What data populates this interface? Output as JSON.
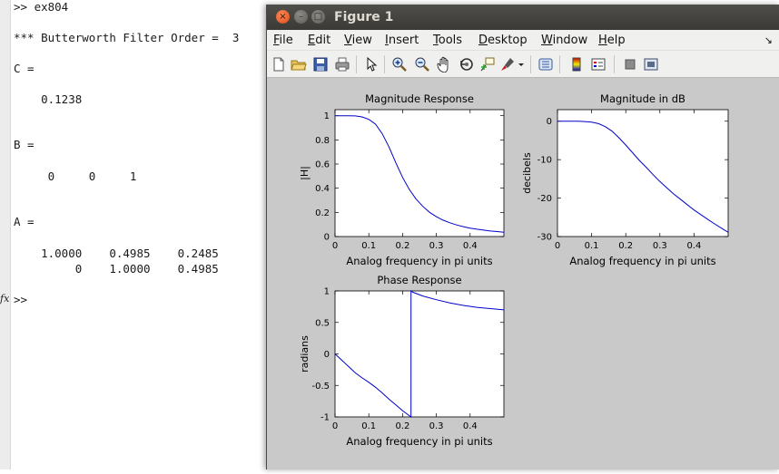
{
  "command_window": {
    "lines": [
      ">> ex804",
      "*** Butterworth Filter Order =  3",
      "C =",
      "    0.1238",
      "B =",
      "     0     0     1",
      "A =",
      "    1.0000    0.4985    0.2485",
      "         0    1.0000    0.4985",
      ">>"
    ],
    "fx_symbol": "fx"
  },
  "figure": {
    "title": "Figure 1",
    "menus": [
      "File",
      "Edit",
      "View",
      "Insert",
      "Tools",
      "Desktop",
      "Window",
      "Help"
    ],
    "menu_underline": [
      "F",
      "E",
      "V",
      "I",
      "T",
      "D",
      "W",
      "H"
    ],
    "dock_symbol": "↘",
    "toolbar_icons": [
      "new-figure-icon",
      "open-file-icon",
      "save-icon",
      "print-icon",
      "edit-plot-arrow-icon",
      "zoom-in-icon",
      "zoom-out-icon",
      "pan-hand-icon",
      "rotate-3d-icon",
      "data-cursor-icon",
      "brush-icon",
      "link-plot-icon",
      "insert-colorbar-icon",
      "insert-legend-icon",
      "hide-plot-tools-icon",
      "show-plot-tools-icon"
    ]
  },
  "colors": {
    "line": "#0000cc",
    "figure_bg": "#c9c9c9",
    "titlebar": "#3c3b37",
    "close": "#e95420"
  },
  "chart_data": [
    {
      "type": "line",
      "title": "Magnitude Response",
      "xlabel": "Analog frequency in pi units",
      "ylabel": "|H|",
      "xlim": [
        0,
        0.5
      ],
      "ylim": [
        0,
        1.05
      ],
      "xticks": [
        "0",
        "0.1",
        "0.2",
        "0.3",
        "0.4"
      ],
      "yticks": [
        "0",
        "0.2",
        "0.4",
        "0.6",
        "0.8",
        "1"
      ],
      "x": [
        0,
        0.02,
        0.04,
        0.06,
        0.08,
        0.1,
        0.12,
        0.14,
        0.16,
        0.18,
        0.2,
        0.22,
        0.24,
        0.26,
        0.28,
        0.3,
        0.32,
        0.34,
        0.36,
        0.38,
        0.4,
        0.42,
        0.44,
        0.46,
        0.48,
        0.5
      ],
      "y": [
        1.0,
        1.0,
        1.0,
        0.998,
        0.99,
        0.97,
        0.93,
        0.85,
        0.74,
        0.61,
        0.49,
        0.39,
        0.31,
        0.25,
        0.2,
        0.164,
        0.136,
        0.114,
        0.096,
        0.082,
        0.07,
        0.061,
        0.053,
        0.046,
        0.041,
        0.036
      ]
    },
    {
      "type": "line",
      "title": "Magnitude in dB",
      "xlabel": "Analog frequency in pi units",
      "ylabel": "decibels",
      "xlim": [
        0,
        0.5
      ],
      "ylim": [
        -30,
        3
      ],
      "xticks": [
        "0",
        "0.1",
        "0.2",
        "0.3",
        "0.4"
      ],
      "yticks": [
        "-30",
        "-20",
        "-10",
        "0"
      ],
      "x": [
        0,
        0.02,
        0.04,
        0.06,
        0.08,
        0.1,
        0.12,
        0.14,
        0.16,
        0.18,
        0.2,
        0.22,
        0.24,
        0.26,
        0.28,
        0.3,
        0.32,
        0.34,
        0.36,
        0.38,
        0.4,
        0.42,
        0.44,
        0.46,
        0.48,
        0.5
      ],
      "y": [
        0,
        0,
        0,
        -0.02,
        -0.09,
        -0.26,
        -0.63,
        -1.41,
        -2.6,
        -4.3,
        -6.2,
        -8.2,
        -10.2,
        -12.0,
        -13.9,
        -15.7,
        -17.3,
        -18.9,
        -20.3,
        -21.7,
        -23.1,
        -24.3,
        -25.5,
        -26.7,
        -27.8,
        -28.9
      ]
    },
    {
      "type": "line",
      "title": "Phase Response",
      "xlabel": "Analog frequency in pi units",
      "ylabel": "radians",
      "xlim": [
        0,
        0.5
      ],
      "ylim": [
        -1,
        1
      ],
      "xticks": [
        "0",
        "0.1",
        "0.2",
        "0.3",
        "0.4"
      ],
      "yticks": [
        "-1",
        "-0.5",
        "0",
        "0.5",
        "1"
      ],
      "x": [
        0,
        0.02,
        0.04,
        0.06,
        0.08,
        0.1,
        0.12,
        0.14,
        0.16,
        0.18,
        0.2,
        0.22,
        0.225,
        0.2251,
        0.23,
        0.26,
        0.3,
        0.34,
        0.38,
        0.42,
        0.46,
        0.5
      ],
      "y": [
        0,
        -0.1,
        -0.2,
        -0.3,
        -0.38,
        -0.45,
        -0.53,
        -0.62,
        -0.72,
        -0.81,
        -0.9,
        -0.98,
        -1.0,
        1.0,
        0.98,
        0.92,
        0.86,
        0.81,
        0.77,
        0.74,
        0.72,
        0.7
      ]
    }
  ]
}
